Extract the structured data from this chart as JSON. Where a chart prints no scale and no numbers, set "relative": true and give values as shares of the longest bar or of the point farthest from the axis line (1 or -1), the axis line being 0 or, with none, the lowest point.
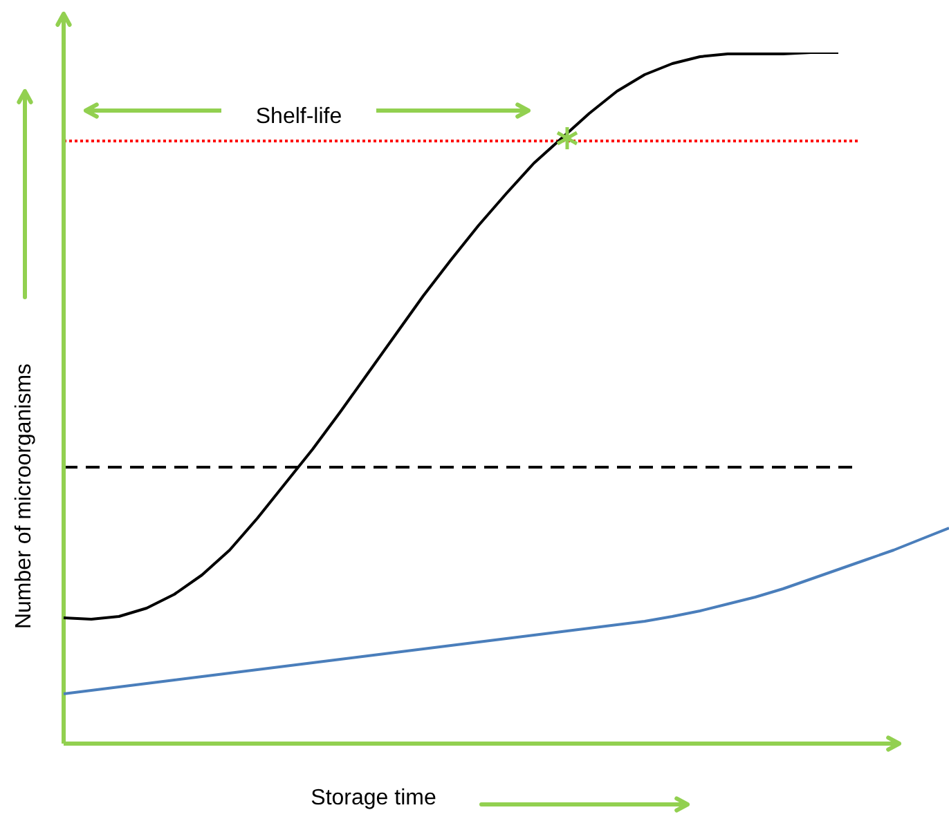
{
  "chart_data": {
    "type": "line",
    "relative": true,
    "xlabel": "Storage time",
    "ylabel": "Number of microorganisms",
    "annotations": [
      "Shelf-life"
    ],
    "legend": false,
    "marker": "none",
    "categories": [
      null,
      null,
      null,
      null,
      null,
      null,
      null,
      null,
      null,
      null,
      null,
      null,
      null,
      null,
      null,
      null,
      null,
      null,
      null,
      null,
      null,
      null,
      null,
      null,
      null,
      null,
      null,
      null,
      null,
      null,
      null,
      null,
      null
    ],
    "series": [
      {
        "color": "#000000",
        "values": [
          0.182,
          0.18,
          0.184,
          0.196,
          0.216,
          0.244,
          0.28,
          0.326,
          0.376,
          0.426,
          0.48,
          0.536,
          0.592,
          0.648,
          0.7,
          0.75,
          0.796,
          0.84,
          0.876,
          0.912,
          0.944,
          0.968,
          0.984,
          0.994,
          0.998,
          0.998,
          0.998,
          1,
          1,
          null,
          null,
          null,
          null
        ]
      },
      {
        "color": "#4a7ebb",
        "values": [
          0.072,
          0.077,
          0.082,
          0.087,
          0.092,
          0.097,
          0.102,
          0.107,
          0.112,
          0.117,
          0.122,
          0.127,
          0.132,
          0.137,
          0.142,
          0.147,
          0.152,
          0.157,
          0.162,
          0.167,
          0.172,
          0.177,
          0.184,
          0.192,
          0.202,
          0.212,
          0.224,
          0.238,
          0.252,
          0.266,
          0.28,
          0.296,
          0.312
        ]
      }
    ],
    "ref_lines": [
      {
        "axis": "y",
        "value": 0.872,
        "color": "#ff0000",
        "line_style": "dotted"
      },
      {
        "axis": "y",
        "value": 0.4,
        "color": "#000000",
        "line_style": "dashed"
      }
    ]
  }
}
